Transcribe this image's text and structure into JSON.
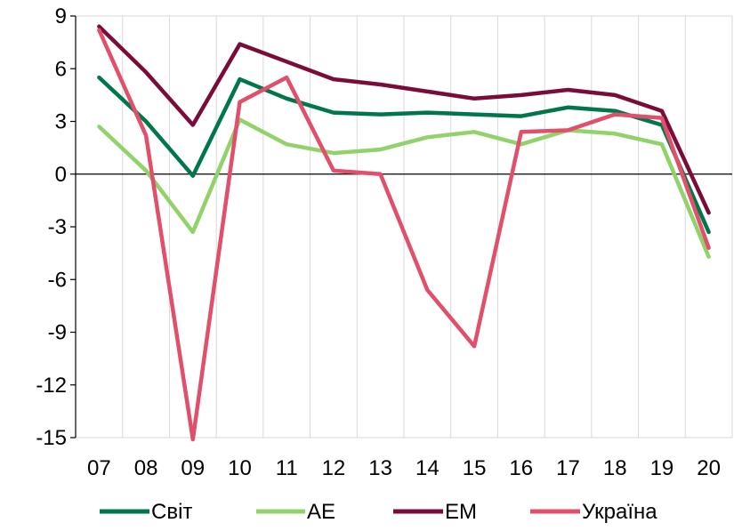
{
  "chart_data": {
    "type": "line",
    "title": "",
    "xlabel": "",
    "ylabel": "",
    "categories": [
      "07",
      "08",
      "09",
      "10",
      "11",
      "12",
      "13",
      "14",
      "15",
      "16",
      "17",
      "18",
      "19",
      "20"
    ],
    "ylim": [
      -15,
      9
    ],
    "yticks": [
      9,
      6,
      3,
      0,
      -3,
      -6,
      -9,
      -12,
      -15
    ],
    "grid": "vertical",
    "legend_position": "bottom",
    "series": [
      {
        "name": "Світ",
        "color": "#00774a",
        "values": [
          5.5,
          3.0,
          -0.1,
          5.4,
          4.3,
          3.5,
          3.4,
          3.5,
          3.4,
          3.3,
          3.8,
          3.6,
          2.8,
          -3.3
        ]
      },
      {
        "name": "AE",
        "color": "#92d26b",
        "values": [
          2.7,
          0.2,
          -3.3,
          3.1,
          1.7,
          1.2,
          1.4,
          2.1,
          2.4,
          1.7,
          2.5,
          2.3,
          1.7,
          -4.7
        ]
      },
      {
        "name": "EM",
        "color": "#7b0c3a",
        "values": [
          8.4,
          5.8,
          2.8,
          7.4,
          6.4,
          5.4,
          5.1,
          4.7,
          4.3,
          4.5,
          4.8,
          4.5,
          3.6,
          -2.2
        ]
      },
      {
        "name": "Україна",
        "color": "#e0506a",
        "values": [
          8.2,
          2.2,
          -15.1,
          4.1,
          5.5,
          0.2,
          0.0,
          -6.6,
          -9.8,
          2.4,
          2.5,
          3.4,
          3.2,
          -4.2
        ]
      }
    ]
  }
}
